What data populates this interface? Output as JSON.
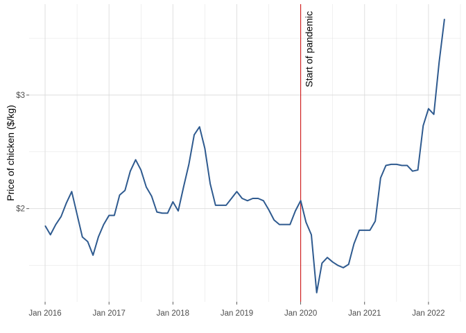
{
  "chart_data": {
    "type": "line",
    "title": "",
    "xlabel": "",
    "ylabel": "Price of chicken ($/kg)",
    "x_tick_labels": [
      "Jan 2016",
      "Jan 2017",
      "Jan 2018",
      "Jan 2019",
      "Jan 2020",
      "Jan 2021",
      "Jan 2022"
    ],
    "y_ticks": [
      2,
      3
    ],
    "y_tick_labels": [
      "$2",
      "$3"
    ],
    "xlim": [
      "2015-10-01",
      "2022-07-01"
    ],
    "ylim": [
      1.18,
      3.8
    ],
    "grid": true,
    "annotation": {
      "text": "Start of pandemic",
      "x": "2020-01-01"
    },
    "colors": {
      "line": "#2e5a8f",
      "annotation_line": "#cc0000",
      "grid": "#dcdcdc"
    },
    "series": [
      {
        "x": [
          "2016-01",
          "2016-02",
          "2016-03",
          "2016-04",
          "2016-05",
          "2016-06",
          "2016-07",
          "2016-08",
          "2016-09",
          "2016-10",
          "2016-11",
          "2016-12",
          "2017-01",
          "2017-02",
          "2017-03",
          "2017-04",
          "2017-05",
          "2017-06",
          "2017-07",
          "2017-08",
          "2017-09",
          "2017-10",
          "2017-11",
          "2017-12",
          "2018-01",
          "2018-02",
          "2018-03",
          "2018-04",
          "2018-05",
          "2018-06",
          "2018-07",
          "2018-08",
          "2018-09",
          "2018-10",
          "2018-11",
          "2018-12",
          "2019-01",
          "2019-02",
          "2019-03",
          "2019-04",
          "2019-05",
          "2019-06",
          "2019-07",
          "2019-08",
          "2019-09",
          "2019-10",
          "2019-11",
          "2019-12",
          "2020-01",
          "2020-02",
          "2020-03",
          "2020-04",
          "2020-05",
          "2020-06",
          "2020-07",
          "2020-08",
          "2020-09",
          "2020-10",
          "2020-11",
          "2020-12",
          "2021-01",
          "2021-02",
          "2021-03",
          "2021-04",
          "2021-05",
          "2021-06",
          "2021-07",
          "2021-08",
          "2021-09",
          "2021-10",
          "2021-11",
          "2021-12",
          "2022-01",
          "2022-02",
          "2022-03",
          "2022-04"
        ],
        "values": [
          1.85,
          1.77,
          1.86,
          1.93,
          2.05,
          2.15,
          1.95,
          1.75,
          1.71,
          1.59,
          1.75,
          1.86,
          1.94,
          1.94,
          2.12,
          2.16,
          2.33,
          2.43,
          2.34,
          2.19,
          2.11,
          1.97,
          1.96,
          1.96,
          2.06,
          1.98,
          2.19,
          2.39,
          2.65,
          2.72,
          2.53,
          2.22,
          2.03,
          2.03,
          2.03,
          2.09,
          2.15,
          2.09,
          2.07,
          2.09,
          2.09,
          2.07,
          1.99,
          1.9,
          1.86,
          1.86,
          1.86,
          1.98,
          2.07,
          1.88,
          1.77,
          1.26,
          1.52,
          1.57,
          1.53,
          1.5,
          1.48,
          1.51,
          1.69,
          1.81,
          1.81,
          1.81,
          1.89,
          2.27,
          2.38,
          2.39,
          2.39,
          2.38,
          2.38,
          2.33,
          2.34,
          2.73,
          2.88,
          2.83,
          3.29,
          3.67
        ]
      }
    ]
  }
}
